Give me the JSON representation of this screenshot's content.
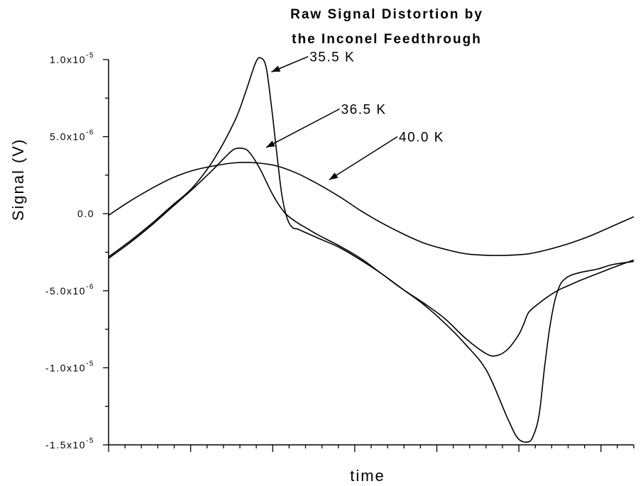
{
  "chart_data": {
    "type": "line",
    "title_lines": [
      "Raw Signal Distortion by",
      "the Inconel Feedthrough"
    ],
    "xlabel": "time",
    "ylabel": "Signal (V)",
    "xlim": [
      0,
      1
    ],
    "ylim": [
      -1.5e-05,
      1e-05
    ],
    "y_ticks": [
      {
        "value": 1e-05,
        "mant": "1.0x10",
        "exp": "-5"
      },
      {
        "value": 5e-06,
        "mant": "5.0x10",
        "exp": "-6"
      },
      {
        "value": 0,
        "mant": "0.0",
        "exp": ""
      },
      {
        "value": -5e-06,
        "mant": "-5.0x10",
        "exp": "-6"
      },
      {
        "value": -1e-05,
        "mant": "-1.0x10",
        "exp": "-5"
      },
      {
        "value": -1.5e-05,
        "mant": "-1.5x10",
        "exp": "-5"
      }
    ],
    "series": [
      {
        "name": "35.5 K",
        "x": [
          0,
          0.04,
          0.08,
          0.12,
          0.16,
          0.2,
          0.24,
          0.26,
          0.28,
          0.29,
          0.3,
          0.31,
          0.32,
          0.33,
          0.34,
          0.35,
          0.36,
          0.38,
          0.4,
          0.44,
          0.48,
          0.52,
          0.56,
          0.6,
          0.64,
          0.68,
          0.72,
          0.76,
          0.78,
          0.8,
          0.81,
          0.82,
          0.83,
          0.84,
          0.85,
          0.86,
          0.87,
          0.88,
          0.9,
          0.93,
          0.96,
          1.0
        ],
        "y": [
          -2.8e-06,
          -1.8e-06,
          -7e-07,
          5e-07,
          1.7e-06,
          3.5e-06,
          6e-06,
          7.8e-06,
          9.8e-06,
          1.01e-05,
          9.5e-06,
          7e-06,
          4e-06,
          1.2e-06,
          -3e-07,
          -9e-07,
          -1e-06,
          -1.3e-06,
          -1.6e-06,
          -2.2e-06,
          -3e-06,
          -3.9e-06,
          -4.9e-06,
          -5.9e-06,
          -7.1e-06,
          -8.5e-06,
          -1.02e-05,
          -1.33e-05,
          -1.46e-05,
          -1.48e-05,
          -1.43e-05,
          -1.3e-05,
          -1e-05,
          -7.4e-06,
          -5.6e-06,
          -4.6e-06,
          -4.2e-06,
          -4e-06,
          -3.8e-06,
          -3.6e-06,
          -3.3e-06,
          -3.1e-06
        ]
      },
      {
        "name": "36.5 K",
        "x": [
          0,
          0.04,
          0.08,
          0.12,
          0.16,
          0.2,
          0.22,
          0.24,
          0.26,
          0.27,
          0.28,
          0.29,
          0.3,
          0.31,
          0.32,
          0.33,
          0.34,
          0.36,
          0.38,
          0.4,
          0.44,
          0.48,
          0.52,
          0.56,
          0.6,
          0.64,
          0.68,
          0.72,
          0.74,
          0.76,
          0.78,
          0.79,
          0.8,
          0.82,
          0.84,
          0.86,
          0.88,
          0.9,
          0.93,
          0.96,
          1.0
        ],
        "y": [
          -2.9e-06,
          -1.9e-06,
          -8e-07,
          4e-07,
          1.6e-06,
          2.9e-06,
          3.6e-06,
          4.2e-06,
          4.2e-06,
          3.9e-06,
          3.4e-06,
          2.8e-06,
          2.1e-06,
          1.4e-06,
          8e-07,
          3e-07,
          -1e-07,
          -6e-07,
          -1e-06,
          -1.4e-06,
          -2.1e-06,
          -2.9e-06,
          -3.9e-06,
          -4.9e-06,
          -5.8e-06,
          -6.8e-06,
          -8.1e-06,
          -9.1e-06,
          -9.2e-06,
          -8.8e-06,
          -7.9e-06,
          -7.2e-06,
          -6.4e-06,
          -5.8e-06,
          -5.3e-06,
          -4.9e-06,
          -4.6e-06,
          -4.3e-06,
          -3.9e-06,
          -3.5e-06,
          -3e-06
        ]
      },
      {
        "name": "40.0 K",
        "x": [
          0,
          0.04,
          0.08,
          0.12,
          0.16,
          0.2,
          0.24,
          0.28,
          0.32,
          0.36,
          0.4,
          0.44,
          0.48,
          0.52,
          0.56,
          0.6,
          0.64,
          0.68,
          0.72,
          0.76,
          0.8,
          0.84,
          0.88,
          0.92,
          0.96,
          1.0
        ],
        "y": [
          -1e-07,
          8e-07,
          1.6e-06,
          2.3e-06,
          2.8e-06,
          3.1e-06,
          3.3e-06,
          3.3e-06,
          3.1e-06,
          2.6e-06,
          1.9e-06,
          1.1e-06,
          2e-07,
          -6e-07,
          -1.3e-06,
          -1.9e-06,
          -2.3e-06,
          -2.6e-06,
          -2.7e-06,
          -2.7e-06,
          -2.6e-06,
          -2.3e-06,
          -1.9e-06,
          -1.4e-06,
          -8e-07,
          -2e-07
        ]
      }
    ],
    "annotations": [
      {
        "text": "35.5 K",
        "x": 0.38,
        "y": 1.02e-05,
        "target_x": 0.31,
        "target_y": 9.2e-06
      },
      {
        "text": "36.5 K",
        "x": 0.44,
        "y": 6.8e-06,
        "target_x": 0.3,
        "target_y": 4.3e-06
      },
      {
        "text": "40.0 K",
        "x": 0.55,
        "y": 5e-06,
        "target_x": 0.42,
        "target_y": 2.2e-06
      }
    ]
  }
}
